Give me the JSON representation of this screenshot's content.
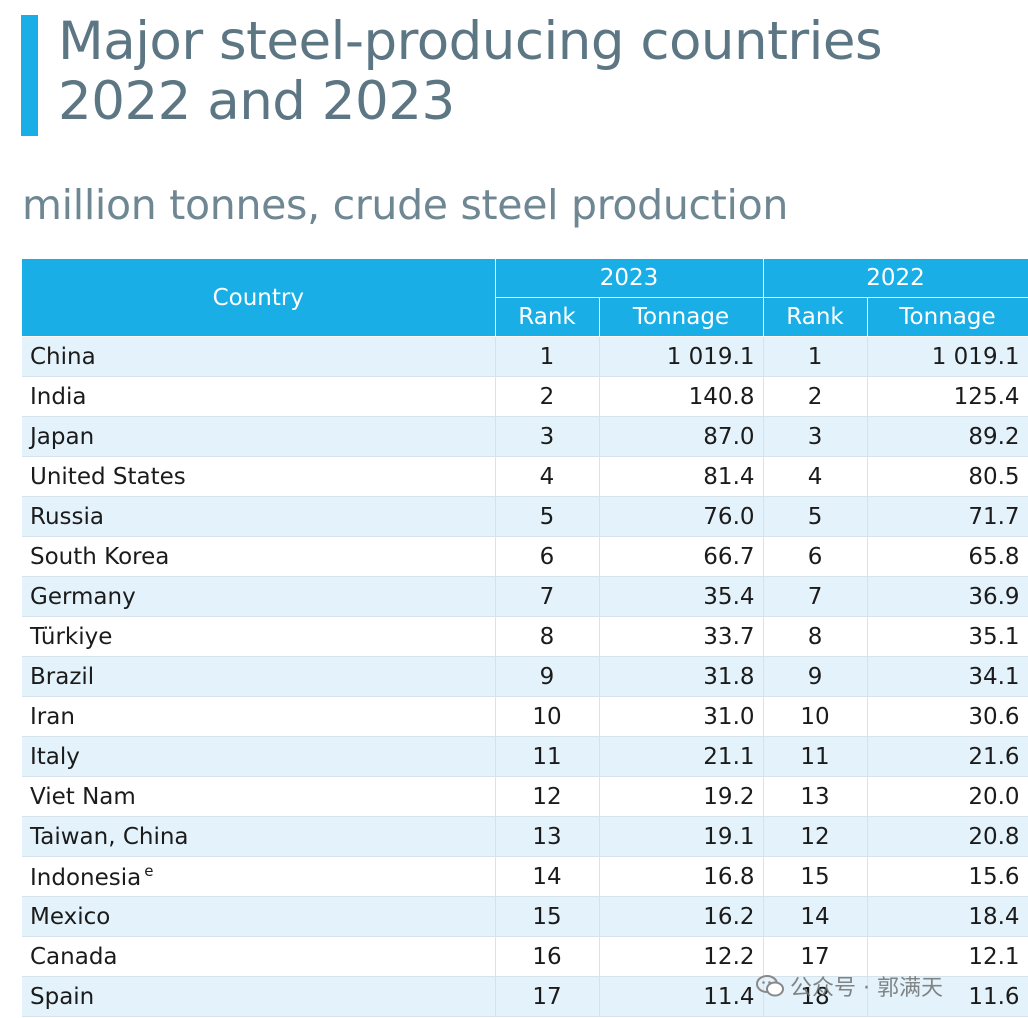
{
  "title_lines": [
    "Major steel-producing countries",
    "2022 and 2023"
  ],
  "subtitle": "million tonnes, crude steel production",
  "watermark": "公众号 · 郭满天",
  "colors": {
    "accent": "#1aaee6",
    "title": "#5c7684",
    "row_alt": "#e4f3fb"
  },
  "chart_data": {
    "type": "table",
    "title": "Major steel-producing countries 2022 and 2023",
    "subtitle": "million tonnes, crude steel production",
    "header": {
      "country": "Country",
      "year_a": "2023",
      "year_b": "2022",
      "rank": "Rank",
      "tonnage": "Tonnage"
    },
    "rows": [
      {
        "country": "China",
        "note": "",
        "rank_2023": "1",
        "ton_2023": "1 019.1",
        "rank_2022": "1",
        "ton_2022": "1 019.1"
      },
      {
        "country": "India",
        "note": "",
        "rank_2023": "2",
        "ton_2023": "140.8",
        "rank_2022": "2",
        "ton_2022": "125.4"
      },
      {
        "country": "Japan",
        "note": "",
        "rank_2023": "3",
        "ton_2023": "87.0",
        "rank_2022": "3",
        "ton_2022": "89.2"
      },
      {
        "country": "United States",
        "note": "",
        "rank_2023": "4",
        "ton_2023": "81.4",
        "rank_2022": "4",
        "ton_2022": "80.5"
      },
      {
        "country": "Russia",
        "note": "",
        "rank_2023": "5",
        "ton_2023": "76.0",
        "rank_2022": "5",
        "ton_2022": "71.7"
      },
      {
        "country": "South Korea",
        "note": "",
        "rank_2023": "6",
        "ton_2023": "66.7",
        "rank_2022": "6",
        "ton_2022": "65.8"
      },
      {
        "country": "Germany",
        "note": "",
        "rank_2023": "7",
        "ton_2023": "35.4",
        "rank_2022": "7",
        "ton_2022": "36.9"
      },
      {
        "country": "Türkiye",
        "note": "",
        "rank_2023": "8",
        "ton_2023": "33.7",
        "rank_2022": "8",
        "ton_2022": "35.1"
      },
      {
        "country": "Brazil",
        "note": "",
        "rank_2023": "9",
        "ton_2023": "31.8",
        "rank_2022": "9",
        "ton_2022": "34.1"
      },
      {
        "country": "Iran",
        "note": "",
        "rank_2023": "10",
        "ton_2023": "31.0",
        "rank_2022": "10",
        "ton_2022": "30.6"
      },
      {
        "country": "Italy",
        "note": "",
        "rank_2023": "11",
        "ton_2023": "21.1",
        "rank_2022": "11",
        "ton_2022": "21.6"
      },
      {
        "country": "Viet Nam",
        "note": "",
        "rank_2023": "12",
        "ton_2023": "19.2",
        "rank_2022": "13",
        "ton_2022": "20.0"
      },
      {
        "country": "Taiwan, China",
        "note": "",
        "rank_2023": "13",
        "ton_2023": "19.1",
        "rank_2022": "12",
        "ton_2022": "20.8"
      },
      {
        "country": "Indonesia",
        "note": "e",
        "rank_2023": "14",
        "ton_2023": "16.8",
        "rank_2022": "15",
        "ton_2022": "15.6"
      },
      {
        "country": "Mexico",
        "note": "",
        "rank_2023": "15",
        "ton_2023": "16.2",
        "rank_2022": "14",
        "ton_2022": "18.4"
      },
      {
        "country": "Canada",
        "note": "",
        "rank_2023": "16",
        "ton_2023": "12.2",
        "rank_2022": "17",
        "ton_2022": "12.1"
      },
      {
        "country": "Spain",
        "note": "",
        "rank_2023": "17",
        "ton_2023": "11.4",
        "rank_2022": "18",
        "ton_2022": "11.6"
      }
    ]
  }
}
